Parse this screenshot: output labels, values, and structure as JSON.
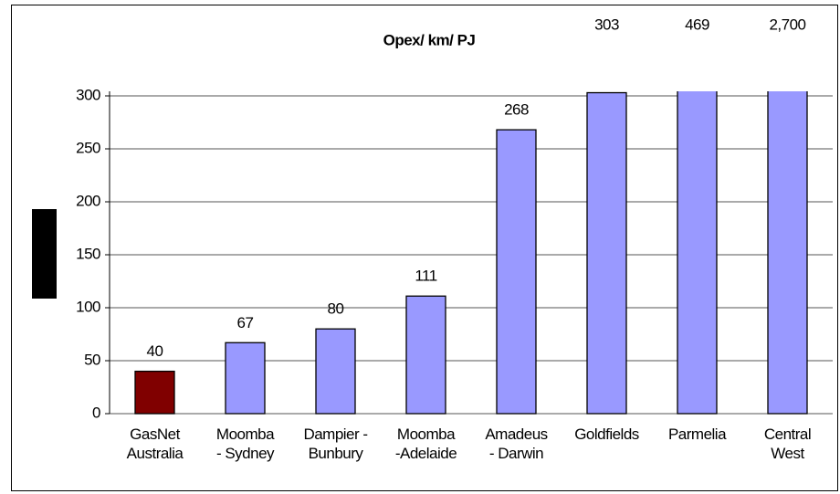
{
  "chart_data": {
    "type": "bar",
    "title": "Opex/ km/ PJ",
    "categories": [
      "GasNet\nAustralia",
      "Moomba\n- Sydney",
      "Dampier -\nBunbury",
      "Moomba\n-Adelaide",
      "Amadeus\n- Darwin",
      "Goldfields",
      "Parmelia",
      "Central\nWest"
    ],
    "values": [
      40,
      67,
      80,
      111,
      268,
      303,
      469,
      2700
    ],
    "value_labels": [
      "40",
      "67",
      "80",
      "111",
      "268",
      "303",
      "469",
      "2,700"
    ],
    "colors": [
      "#800000",
      "#9999ff",
      "#9999ff",
      "#9999ff",
      "#9999ff",
      "#9999ff",
      "#9999ff",
      "#9999ff"
    ],
    "ylim": [
      0,
      300
    ],
    "yticks": [
      0,
      50,
      100,
      150,
      200,
      250,
      300
    ],
    "grid": true
  }
}
